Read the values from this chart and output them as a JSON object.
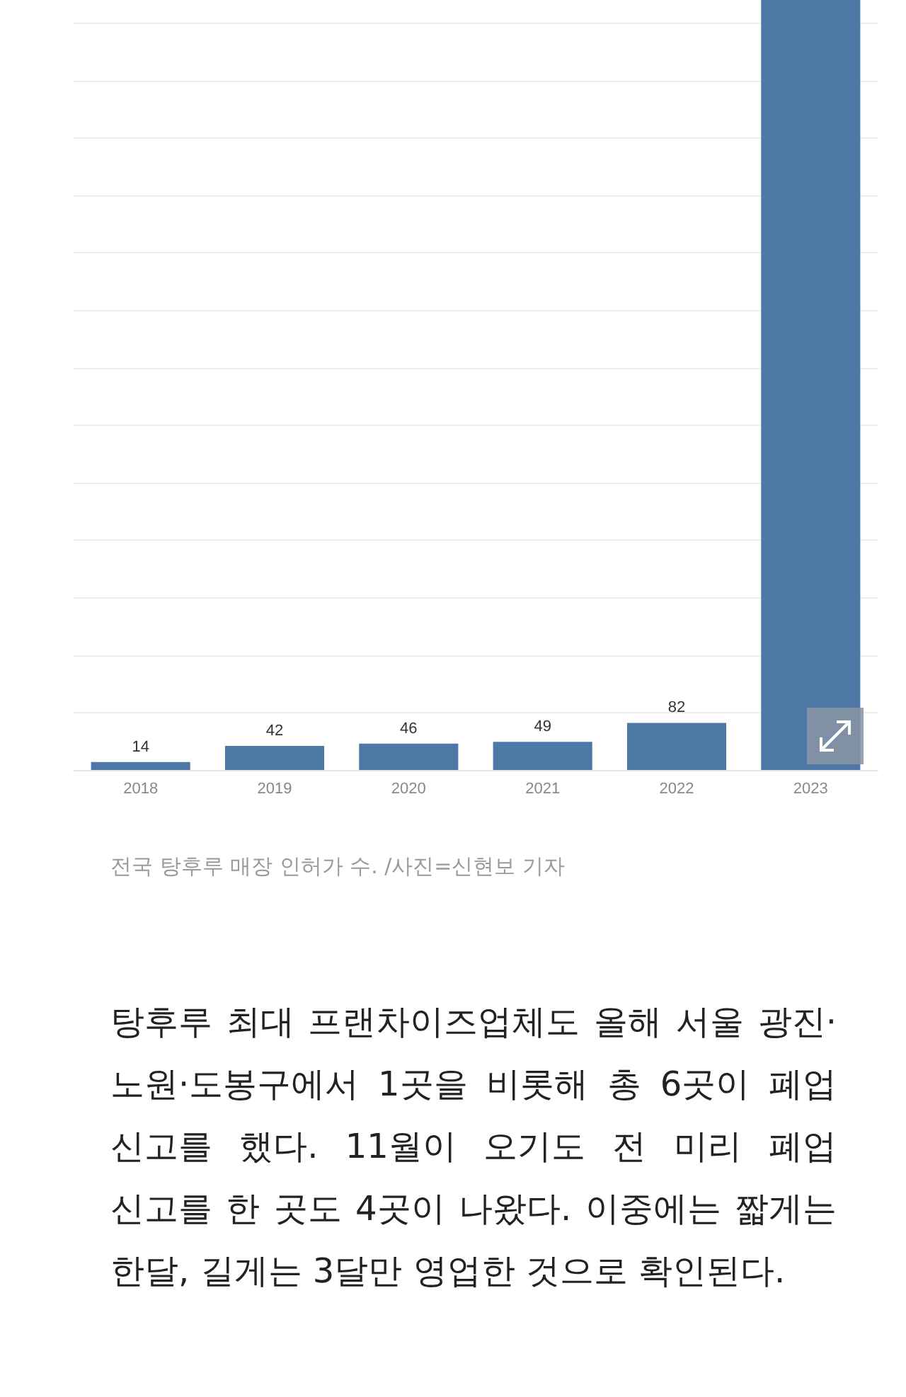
{
  "chart_data": {
    "type": "bar",
    "categories": [
      "2018",
      "2019",
      "2020",
      "2021",
      "2022",
      "2023"
    ],
    "values": [
      14,
      42,
      46,
      49,
      82,
      1340
    ],
    "value_labels": [
      "14",
      "42",
      "46",
      "49",
      "82",
      null
    ],
    "color": "#4e79a7",
    "ylim": [
      0,
      1340
    ],
    "yticks": [
      {
        "value": 0,
        "label": null
      },
      {
        "value": 100,
        "label": null
      },
      {
        "value": 200,
        "label": null
      },
      {
        "value": 300,
        "label": null
      },
      {
        "value": 400,
        "label": null
      },
      {
        "value": 500,
        "label": null
      },
      {
        "value": 600,
        "label": null
      },
      {
        "value": 700,
        "label": null
      },
      {
        "value": 800,
        "label": null
      },
      {
        "value": 900,
        "label": null
      },
      {
        "value": 1000,
        "label": null
      },
      {
        "value": 1100,
        "label": null
      },
      {
        "value": 1200,
        "label": null
      },
      {
        "value": 1300,
        "label": null
      }
    ],
    "grid": "y",
    "tick_labels": "x",
    "annotations": [
      "전국 탕후루 매장 인허가 수. /사진=신현보 기자",
      "탕후루 최대 프랜차이즈업체도 올해 서울 광진·노원·도봉구에서 1곳을 비롯해 총 6곳이 폐업 신고를 했다. 11월이 오기도 전 미리 폐업 신고를 한 곳도 4곳이 나왔다. 이중에는 짧게는 한달, 길게는 3달만 영업한 것으로 확인된다."
    ]
  }
}
